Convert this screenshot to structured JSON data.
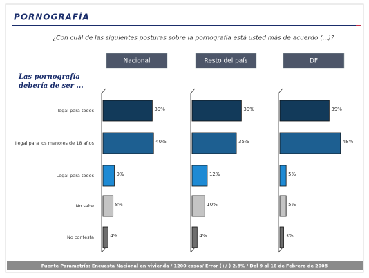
{
  "chart_data": {
    "type": "bar",
    "title": "PORNOGRAFÍA",
    "question": "¿Con cuál de las siguientes posturas sobre la pornografía está usted más de acuerdo (...)?",
    "subtitle": "Las pornografía debería de ser ...",
    "categories": [
      "Ilegal para todos",
      "Ilegal para los menores de 18 años",
      "Legal para todos",
      "No sabe",
      "No contesta"
    ],
    "colors": [
      "#123a5a",
      "#1d5f91",
      "#1e8ad4",
      "#c4c4c4",
      "#6e6e6e"
    ],
    "series": [
      {
        "name": "Nacional",
        "values": [
          39,
          40,
          9,
          8,
          4
        ],
        "value_labels": [
          "39%",
          "40%",
          "9%",
          "8%",
          "4%"
        ]
      },
      {
        "name": "Resto del país",
        "values": [
          39,
          35,
          12,
          10,
          4
        ],
        "value_labels": [
          "39%",
          "35%",
          "12%",
          "10%",
          "4%"
        ]
      },
      {
        "name": "DF",
        "values": [
          39,
          48,
          5,
          5,
          3
        ],
        "value_labels": [
          "39%",
          "48%",
          "5%",
          "5%",
          "3%"
        ]
      }
    ],
    "source": "Fuente Parametría: Encuesta Nacional en vivienda / 1200 casos/ Error (+/-) 2.8% / Del 9 al 16 de Febrero de 2008"
  }
}
